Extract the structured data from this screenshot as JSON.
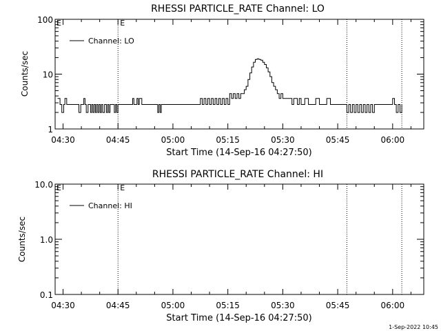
{
  "chart_data": [
    {
      "type": "line",
      "title": "RHESSI PARTICLE_RATE Channel: LO",
      "xlabel": "Start Time (14-Sep-16 04:27:50)",
      "ylabel": "Counts/sec",
      "y_scale": "log",
      "ylim": [
        1,
        100
      ],
      "xlim": [
        "04:27:50",
        "06:08:30"
      ],
      "x_ticks": [
        "04:30",
        "04:45",
        "05:00",
        "05:15",
        "05:30",
        "05:45",
        "06:00"
      ],
      "y_ticks": [
        "1",
        "10",
        "100"
      ],
      "vertical_markers": [
        {
          "x": "04:45:00",
          "label": "E"
        },
        {
          "x": "05:47:30",
          "label": ""
        },
        {
          "x": "06:02:30",
          "label": ""
        }
      ],
      "edge_marker_label": "E",
      "legend": {
        "placement": "top-left",
        "entries": [
          "Channel: LO"
        ]
      },
      "series": [
        {
          "name": "Channel: LO",
          "color": "#000000",
          "base_level": 2.8,
          "x": [
            "04:28:30",
            "04:29:10",
            "04:29:40",
            "04:30:10",
            "04:30:30",
            "04:31:00",
            "04:31:30",
            "04:32:00",
            "04:32:30",
            "04:33:00",
            "04:33:30",
            "04:34:00",
            "04:34:20",
            "04:34:50",
            "04:35:20",
            "04:35:40",
            "04:36:00",
            "04:36:20",
            "04:36:50",
            "04:37:10",
            "04:37:30",
            "04:37:50",
            "04:38:10",
            "04:38:30",
            "04:38:50",
            "04:39:10",
            "04:39:30",
            "04:39:50",
            "04:40:10",
            "04:40:30",
            "04:40:50",
            "04:41:20",
            "04:41:50",
            "04:42:10",
            "04:42:30",
            "04:42:50",
            "04:43:10",
            "04:43:40",
            "04:44:00",
            "04:44:20",
            "04:44:40",
            "04:45:00",
            "04:47:00",
            "04:48:40",
            "04:49:00",
            "04:49:20",
            "04:49:40",
            "04:50:10",
            "04:50:30",
            "04:50:50",
            "04:51:10",
            "04:51:30",
            "04:51:50",
            "04:52:20",
            "04:53:00",
            "04:54:00",
            "04:55:30",
            "04:55:50",
            "04:56:10",
            "04:56:30",
            "04:56:50",
            "04:57:30",
            "05:00:00",
            "05:02:00",
            "05:03:00",
            "05:04:00",
            "05:05:00",
            "05:06:00",
            "05:07:00",
            "05:07:30",
            "05:08:00",
            "05:08:30",
            "05:09:00",
            "05:09:30",
            "05:10:00",
            "05:10:30",
            "05:11:00",
            "05:11:30",
            "05:12:00",
            "05:12:30",
            "05:13:00",
            "05:13:30",
            "05:14:00",
            "05:14:30",
            "05:15:00",
            "05:15:30",
            "05:16:00",
            "05:16:30",
            "05:17:00",
            "05:17:30",
            "05:18:00",
            "05:18:30",
            "05:19:00",
            "05:19:30",
            "05:20:00",
            "05:20:30",
            "05:21:00",
            "05:21:30",
            "05:22:00",
            "05:22:30",
            "05:23:00",
            "05:23:30",
            "05:24:00",
            "05:24:30",
            "05:25:00",
            "05:25:30",
            "05:26:00",
            "05:26:30",
            "05:27:00",
            "05:27:30",
            "05:28:00",
            "05:28:30",
            "05:29:00",
            "05:29:30",
            "05:30:00",
            "05:30:30",
            "05:31:00",
            "05:31:30",
            "05:32:00",
            "05:32:30",
            "05:33:00",
            "05:34:00",
            "05:34:30",
            "05:35:00",
            "05:36:00",
            "05:37:00",
            "05:38:00",
            "05:39:00",
            "05:40:00",
            "05:41:00",
            "05:42:00",
            "05:43:00",
            "05:44:00",
            "05:44:30",
            "05:45:00",
            "05:47:30",
            "05:48:00",
            "05:48:30",
            "05:49:00",
            "05:49:30",
            "05:50:00",
            "05:50:30",
            "05:51:00",
            "05:51:30",
            "05:52:00",
            "05:52:30",
            "05:53:00",
            "05:53:30",
            "05:54:00",
            "05:54:30",
            "05:55:00",
            "05:55:30",
            "05:56:00",
            "05:56:30",
            "05:57:00",
            "05:58:00",
            "05:59:00",
            "06:00:00",
            "06:00:30",
            "06:01:00",
            "06:01:30",
            "06:02:00",
            "06:02:30"
          ],
          "values": [
            3.6,
            2.8,
            2.0,
            2.8,
            3.6,
            2.8,
            2.8,
            2.8,
            2.8,
            2.8,
            2.8,
            2.8,
            2.0,
            2.8,
            2.8,
            3.6,
            2.8,
            2.0,
            2.8,
            2.8,
            2.0,
            2.8,
            2.0,
            2.8,
            2.0,
            2.8,
            2.0,
            2.8,
            2.0,
            2.8,
            2.0,
            2.8,
            2.0,
            2.8,
            2.0,
            2.8,
            2.8,
            2.8,
            2.0,
            2.8,
            2.0,
            2.8,
            2.8,
            2.8,
            3.6,
            2.8,
            2.8,
            3.6,
            2.8,
            3.6,
            3.6,
            2.8,
            2.8,
            2.8,
            2.8,
            2.8,
            2.8,
            2.0,
            2.8,
            2.0,
            2.8,
            2.8,
            2.8,
            2.8,
            2.8,
            2.8,
            2.8,
            2.8,
            2.8,
            3.6,
            2.8,
            3.6,
            2.8,
            3.6,
            2.8,
            3.6,
            2.8,
            3.6,
            2.8,
            3.6,
            2.8,
            3.6,
            2.8,
            3.6,
            2.8,
            4.4,
            3.6,
            4.4,
            3.6,
            4.4,
            3.6,
            4.4,
            4.4,
            5.2,
            6.0,
            8.0,
            10.5,
            13.5,
            16.5,
            18.5,
            19.0,
            18.5,
            18.0,
            16.5,
            15.0,
            13.0,
            11.0,
            9.0,
            7.0,
            6.0,
            5.2,
            4.4,
            3.6,
            4.4,
            3.6,
            3.6,
            3.6,
            3.6,
            3.6,
            2.8,
            3.6,
            2.8,
            3.6,
            2.8,
            3.6,
            2.8,
            2.8,
            3.6,
            2.8,
            2.8,
            3.6,
            2.8,
            2.8,
            2.8,
            2.8,
            2.0,
            2.8,
            2.0,
            2.8,
            2.0,
            2.8,
            2.0,
            2.8,
            2.0,
            2.8,
            2.0,
            2.8,
            2.0,
            2.8,
            2.0,
            2.8,
            2.8,
            2.8,
            2.8,
            2.8,
            2.8,
            2.8,
            3.6,
            2.8,
            2.0,
            2.8,
            2.0,
            2.8
          ]
        }
      ]
    },
    {
      "type": "line",
      "title": "RHESSI PARTICLE_RATE Channel: HI",
      "xlabel": "Start Time (14-Sep-16 04:27:50)",
      "ylabel": "Counts/sec",
      "y_scale": "log",
      "ylim": [
        0.1,
        10
      ],
      "xlim": [
        "04:27:50",
        "06:08:30"
      ],
      "x_ticks": [
        "04:30",
        "04:45",
        "05:00",
        "05:15",
        "05:30",
        "05:45",
        "06:00"
      ],
      "y_ticks": [
        "0.1",
        "1.0",
        "10.0"
      ],
      "vertical_markers": [
        {
          "x": "04:45:00",
          "label": "E"
        },
        {
          "x": "05:47:30",
          "label": ""
        },
        {
          "x": "06:02:30",
          "label": ""
        }
      ],
      "edge_marker_label": "E",
      "legend": {
        "placement": "top-left",
        "entries": [
          "Channel: HI"
        ]
      },
      "series": [
        {
          "name": "Channel: HI",
          "color": "#000000",
          "x": [],
          "values": []
        }
      ]
    }
  ],
  "timestamp": "1-Sep-2022 10:45"
}
